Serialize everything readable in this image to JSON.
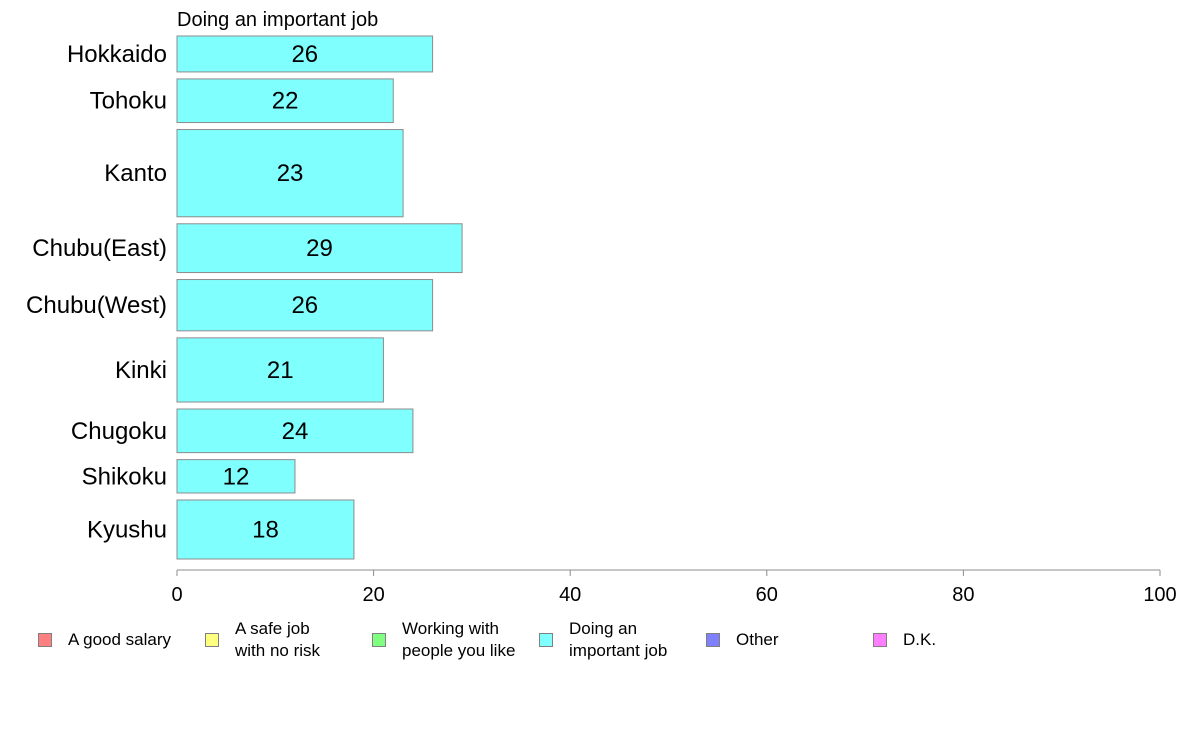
{
  "chart_data": {
    "type": "bar",
    "orientation": "horizontal",
    "series_title": "Doing an important job",
    "categories": [
      "Hokkaido",
      "Tohoku",
      "Kanto",
      "Chubu(East)",
      "Chubu(West)",
      "Kinki",
      "Chugoku",
      "Shikoku",
      "Kyushu"
    ],
    "values": [
      26,
      22,
      23,
      29,
      26,
      21,
      24,
      12,
      18
    ],
    "value_labels": [
      "26",
      "22",
      "23",
      "29",
      "26",
      "21",
      "24",
      "12",
      "18"
    ],
    "category_weights": [
      0.7,
      0.85,
      1.7,
      0.95,
      1.0,
      1.25,
      0.85,
      0.65,
      1.15
    ],
    "xlim": [
      0,
      100
    ],
    "xticks": [
      0,
      20,
      40,
      60,
      80,
      100
    ],
    "grid": false,
    "bar_color": "#80ffff",
    "legend_placement": "bottom",
    "legend": [
      {
        "label": "A good salary",
        "color": "#ff8080"
      },
      {
        "label": "A safe job\nwith no risk",
        "color": "#ffff80"
      },
      {
        "label": "Working with\npeople you like",
        "color": "#80ff80"
      },
      {
        "label": "Doing an\nimportant job",
        "color": "#80ffff"
      },
      {
        "label": "Other",
        "color": "#8080ff"
      },
      {
        "label": "D.K.",
        "color": "#ff80ff"
      }
    ]
  }
}
